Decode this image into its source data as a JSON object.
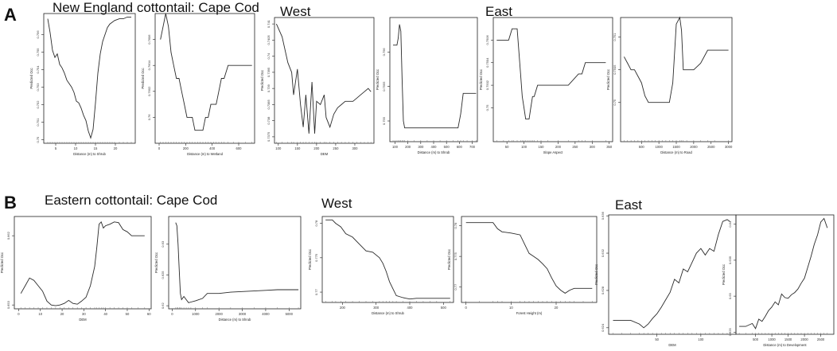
{
  "panels": {
    "A": {
      "letter": "A",
      "group_title": "New England cottontail: Cape Cod",
      "west_title": "West",
      "east_title": "East"
    },
    "B": {
      "letter": "B",
      "group_title": "Eastern cottontail: Cape Cod",
      "west_title": "West",
      "east_title": "East"
    }
  },
  "chart_data": [
    {
      "type": "line",
      "row": "A",
      "xlabel": "Distance (m) to Shrub",
      "ylabel": "Predicted Occ",
      "xlim": [
        2,
        25
      ],
      "ylim": [
        0.7498,
        0.7572
      ],
      "xticks": [
        5,
        10,
        15,
        20
      ],
      "yticks": [
        0.75,
        0.751,
        0.752,
        0.753,
        0.754,
        0.755,
        0.756
      ],
      "x": [
        3,
        3.6,
        4.2,
        4.8,
        5.4,
        6,
        6.6,
        7.2,
        7.8,
        8.4,
        9,
        9.6,
        10.2,
        10.8,
        11.4,
        12,
        12.6,
        13.2,
        13.8,
        14.4,
        15,
        15.6,
        16.2,
        16.8,
        17.4,
        18,
        18.6,
        19.2,
        19.8,
        21,
        22,
        23,
        24
      ],
      "y": [
        0.7569,
        0.7561,
        0.7551,
        0.7547,
        0.7549,
        0.7543,
        0.7541,
        0.7538,
        0.7534,
        0.7532,
        0.753,
        0.7527,
        0.7522,
        0.7521,
        0.7518,
        0.7514,
        0.7511,
        0.7505,
        0.7501,
        0.7506,
        0.7521,
        0.7538,
        0.7549,
        0.7556,
        0.756,
        0.7564,
        0.7566,
        0.7567,
        0.7568,
        0.7569,
        0.7569,
        0.757,
        0.757
      ]
    },
    {
      "type": "line",
      "row": "A",
      "xlabel": "Distance (m) to Wetland",
      "ylabel": "Predicted Occ",
      "xlim": [
        -30,
        720
      ],
      "ylim": [
        0.7598,
        0.7608
      ],
      "xticks": [
        0,
        200,
        400,
        600
      ],
      "yticks": [
        0.76,
        0.7602,
        0.7604,
        0.7606
      ],
      "x": [
        10,
        30,
        50,
        70,
        90,
        110,
        130,
        150,
        170,
        190,
        210,
        230,
        250,
        270,
        290,
        310,
        330,
        350,
        370,
        390,
        410,
        430,
        450,
        470,
        490,
        520,
        560,
        600,
        650,
        700
      ],
      "y": [
        0.7606,
        0.7607,
        0.7608,
        0.7607,
        0.7605,
        0.7604,
        0.7603,
        0.7603,
        0.7602,
        0.7601,
        0.76,
        0.76,
        0.76,
        0.7599,
        0.7599,
        0.7599,
        0.7599,
        0.76,
        0.76,
        0.7601,
        0.7601,
        0.7601,
        0.7602,
        0.7603,
        0.7603,
        0.7604,
        0.7604,
        0.7604,
        0.7604,
        0.7604
      ]
    },
    {
      "type": "line",
      "row": "A",
      "xlabel": "DEM",
      "ylabel": "Predicted Occ",
      "xlim": [
        90,
        350
      ],
      "ylim": [
        0.7373,
        0.7412
      ],
      "xticks": [
        100,
        150,
        200,
        250,
        300
      ],
      "yticks": [
        0.7375,
        0.738,
        0.7385,
        0.739,
        0.7395,
        0.74,
        0.7405,
        0.741
      ],
      "x": [
        95,
        110,
        125,
        135,
        140,
        150,
        158,
        165,
        172,
        180,
        188,
        195,
        200,
        210,
        220,
        225,
        235,
        245,
        255,
        265,
        275,
        285,
        295,
        305,
        315,
        325,
        335,
        342
      ],
      "y": [
        0.741,
        0.7406,
        0.7398,
        0.7395,
        0.7388,
        0.7396,
        0.7385,
        0.7378,
        0.7388,
        0.7376,
        0.7392,
        0.7376,
        0.7386,
        0.7385,
        0.7388,
        0.7381,
        0.7378,
        0.7382,
        0.7384,
        0.7385,
        0.7386,
        0.7386,
        0.7386,
        0.7387,
        0.7388,
        0.7389,
        0.739,
        0.7389
      ]
    },
    {
      "type": "line",
      "row": "A",
      "xlabel": "Distance (m) to Shrub",
      "ylabel": "Predicted Occ",
      "xlim": [
        60,
        740
      ],
      "ylim": [
        0.7547,
        0.7565
      ],
      "xticks": [
        100,
        200,
        300,
        400,
        500,
        600,
        700
      ],
      "yticks": [
        0.755,
        0.7555,
        0.756
      ],
      "x": [
        85,
        100,
        115,
        125,
        135,
        145,
        155,
        165,
        175,
        200,
        250,
        300,
        350,
        400,
        450,
        500,
        550,
        590,
        610,
        630,
        660,
        700,
        730
      ],
      "y": [
        0.7561,
        0.7561,
        0.7561,
        0.7562,
        0.7564,
        0.7563,
        0.7556,
        0.755,
        0.7549,
        0.7549,
        0.7549,
        0.7549,
        0.7549,
        0.7549,
        0.7549,
        0.7549,
        0.7549,
        0.7549,
        0.7551,
        0.7554,
        0.7554,
        0.7554,
        0.7554
      ]
    },
    {
      "type": "line",
      "row": "A",
      "xlabel": "Slope Aspect",
      "ylabel": "Predicted Occ",
      "xlim": [
        10,
        360
      ],
      "ylim": [
        0.7497,
        0.7508
      ],
      "xticks": [
        50,
        100,
        150,
        200,
        250,
        300,
        350
      ],
      "yticks": [
        0.75,
        0.7502,
        0.7504,
        0.7506
      ],
      "x": [
        20,
        40,
        55,
        65,
        70,
        80,
        90,
        95,
        100,
        105,
        110,
        115,
        120,
        125,
        130,
        140,
        150,
        170,
        200,
        230,
        260,
        270,
        280,
        300,
        340
      ],
      "y": [
        0.7506,
        0.7506,
        0.7506,
        0.7507,
        0.7507,
        0.7507,
        0.7503,
        0.7501,
        0.75,
        0.7499,
        0.7499,
        0.7499,
        0.75,
        0.7501,
        0.7501,
        0.7502,
        0.7502,
        0.7502,
        0.7502,
        0.7502,
        0.7503,
        0.7503,
        0.7504,
        0.7504,
        0.7504
      ]
    },
    {
      "type": "line",
      "row": "A",
      "xlabel": "Distance (m) to Road",
      "ylabel": "Predicted Occ",
      "xlim": [
        -100,
        3100
      ],
      "ylim": [
        0.7494,
        0.7513
      ],
      "xticks": [
        500,
        1000,
        1500,
        2000,
        2500,
        3000
      ],
      "yticks": [
        0.75,
        0.7505,
        0.751
      ],
      "x": [
        0,
        100,
        200,
        300,
        400,
        500,
        600,
        700,
        800,
        900,
        1000,
        1100,
        1200,
        1300,
        1400,
        1500,
        1600,
        1650,
        1700,
        1800,
        2000,
        2200,
        2400,
        2600,
        3000
      ],
      "y": [
        0.7507,
        0.7506,
        0.7505,
        0.7505,
        0.7504,
        0.7503,
        0.7501,
        0.75,
        0.75,
        0.75,
        0.75,
        0.75,
        0.75,
        0.75,
        0.7503,
        0.7512,
        0.7513,
        0.7511,
        0.7505,
        0.7505,
        0.7505,
        0.7506,
        0.7508,
        0.7508,
        0.7508
      ]
    },
    {
      "type": "line",
      "row": "B",
      "xlabel": "DEM",
      "ylabel": "Predicted Occ",
      "xlim": [
        -2,
        61
      ],
      "ylim": [
        0.6525,
        0.6645
      ],
      "xticks": [
        0,
        10,
        20,
        30,
        40,
        50,
        60
      ],
      "yticks": [
        0.653,
        0.662
      ],
      "x": [
        1,
        3,
        5,
        7,
        9,
        11,
        13,
        15,
        17,
        19,
        21,
        23,
        25,
        27,
        29,
        31,
        33,
        35,
        36,
        37,
        38,
        39,
        40,
        42,
        44,
        46,
        48,
        50,
        52,
        55,
        58
      ],
      "y": [
        0.6545,
        0.6555,
        0.6565,
        0.6562,
        0.6555,
        0.6548,
        0.6535,
        0.653,
        0.6529,
        0.653,
        0.6532,
        0.6536,
        0.6532,
        0.6531,
        0.6535,
        0.654,
        0.6555,
        0.658,
        0.6605,
        0.6635,
        0.6638,
        0.663,
        0.6633,
        0.6635,
        0.6638,
        0.6637,
        0.6628,
        0.6625,
        0.662,
        0.662,
        0.662
      ]
    },
    {
      "type": "line",
      "row": "B",
      "xlabel": "Distance (m) to Shrub",
      "ylabel": "Predicted Occ",
      "xlim": [
        -150,
        5500
      ],
      "ylim": [
        0.6195,
        0.6345
      ],
      "xticks": [
        0,
        1000,
        2000,
        3000,
        4000,
        5000
      ],
      "yticks": [
        0.62,
        0.625,
        0.63
      ],
      "x": [
        150,
        200,
        250,
        300,
        350,
        400,
        500,
        600,
        700,
        800,
        1000,
        1300,
        1500,
        2000,
        2500,
        3000,
        3500,
        4000,
        4500,
        5000,
        5400
      ],
      "y": [
        0.6335,
        0.633,
        0.63,
        0.626,
        0.622,
        0.621,
        0.6215,
        0.621,
        0.6205,
        0.6206,
        0.6208,
        0.6212,
        0.622,
        0.622,
        0.6222,
        0.6223,
        0.6224,
        0.6225,
        0.6226,
        0.6226,
        0.6226
      ]
    },
    {
      "type": "line",
      "row": "B",
      "xlabel": "Distance (m) to Shrub",
      "ylabel": "Predicted Occ",
      "xlim": [
        140,
        530
      ],
      "ylim": [
        0.7685,
        0.781
      ],
      "xticks": [
        200,
        300,
        400,
        500
      ],
      "yticks": [
        0.77,
        0.775,
        0.78
      ],
      "x": [
        150,
        170,
        180,
        195,
        210,
        230,
        250,
        270,
        290,
        310,
        320,
        330,
        340,
        350,
        360,
        380,
        400,
        420,
        440,
        460,
        480,
        520
      ],
      "y": [
        0.7805,
        0.7805,
        0.78,
        0.7795,
        0.7785,
        0.778,
        0.777,
        0.776,
        0.7758,
        0.775,
        0.7742,
        0.773,
        0.7715,
        0.7705,
        0.7695,
        0.7692,
        0.769,
        0.7691,
        0.7691,
        0.7691,
        0.7691,
        0.7691
      ]
    },
    {
      "type": "line",
      "row": "B",
      "xlabel": "Forest Height (m)",
      "ylabel": "Predicted Occ",
      "xlim": [
        -1,
        29
      ],
      "ylim": [
        0.7675,
        0.7815
      ],
      "xticks": [
        0,
        10,
        20
      ],
      "yticks": [
        0.77,
        0.775,
        0.78
      ],
      "x": [
        0,
        3,
        6,
        7,
        8,
        10,
        12,
        13,
        14,
        15,
        16,
        17,
        18,
        19,
        20,
        21,
        22,
        23,
        24,
        26,
        28
      ],
      "y": [
        0.7805,
        0.7805,
        0.7805,
        0.7795,
        0.779,
        0.7788,
        0.7785,
        0.777,
        0.7755,
        0.775,
        0.7745,
        0.7738,
        0.773,
        0.7715,
        0.7702,
        0.7695,
        0.769,
        0.7695,
        0.7698,
        0.7698,
        0.7698
      ]
    },
    {
      "type": "line",
      "row": "B",
      "xlabel": "DEM",
      "ylabel": "Predicted Occ",
      "xlim": [
        -5,
        140
      ],
      "ylim": [
        0.6233,
        0.6361
      ],
      "xticks": [
        50,
        100
      ],
      "yticks": [
        0.624,
        0.628,
        0.632,
        0.636
      ],
      "x": [
        0,
        10,
        20,
        30,
        35,
        40,
        45,
        50,
        55,
        60,
        65,
        70,
        75,
        80,
        85,
        90,
        95,
        100,
        105,
        110,
        115,
        120,
        125,
        130,
        133
      ],
      "y": [
        0.6248,
        0.6248,
        0.6248,
        0.6244,
        0.624,
        0.6244,
        0.625,
        0.6255,
        0.6262,
        0.627,
        0.6278,
        0.6292,
        0.6288,
        0.6303,
        0.63,
        0.631,
        0.632,
        0.6325,
        0.6318,
        0.6325,
        0.6322,
        0.634,
        0.6354,
        0.6356,
        0.6354
      ]
    },
    {
      "type": "line",
      "row": "B",
      "xlabel": "Distance (m) to Development",
      "ylabel": "Predicted Occ",
      "xlim": [
        -100,
        2900
      ],
      "ylim": [
        0.6247,
        0.6413
      ],
      "xticks": [
        500,
        1000,
        1500,
        2000,
        2500
      ],
      "yticks": [
        0.625,
        0.63,
        0.635,
        0.64
      ],
      "x": [
        0,
        200,
        400,
        500,
        600,
        700,
        800,
        900,
        1000,
        1100,
        1200,
        1300,
        1400,
        1500,
        1600,
        1700,
        1800,
        1900,
        2000,
        2100,
        2200,
        2300,
        2400,
        2500,
        2600,
        2700
      ],
      "y": [
        0.6258,
        0.6258,
        0.6262,
        0.6255,
        0.6268,
        0.6265,
        0.6272,
        0.628,
        0.6285,
        0.6292,
        0.6288,
        0.6303,
        0.6298,
        0.6297,
        0.6302,
        0.6305,
        0.631,
        0.6318,
        0.6325,
        0.634,
        0.6355,
        0.6372,
        0.6385,
        0.6403,
        0.6408,
        0.6395
      ]
    }
  ]
}
